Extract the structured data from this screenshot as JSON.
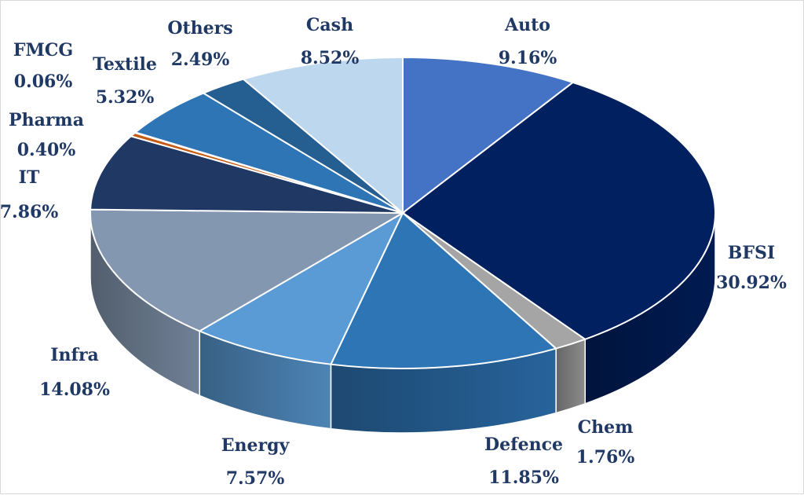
{
  "chart_data": {
    "type": "pie",
    "style": "3d",
    "title": "",
    "slices": [
      {
        "label": "Auto",
        "percent_label": "9.16%",
        "value": 9.16,
        "color": "#4472c4"
      },
      {
        "label": "BFSI",
        "percent_label": "30.92%",
        "value": 30.92,
        "color": "#002060"
      },
      {
        "label": "Chem",
        "percent_label": "1.76%",
        "value": 1.76,
        "color": "#a5a5a5"
      },
      {
        "label": "Defence",
        "percent_label": "11.85%",
        "value": 11.85,
        "color": "#2e75b6"
      },
      {
        "label": "Energy",
        "percent_label": "7.57%",
        "value": 7.57,
        "color": "#5b9bd5"
      },
      {
        "label": "Infra",
        "percent_label": "14.08%",
        "value": 14.08,
        "color": "#8497b0"
      },
      {
        "label": "IT",
        "percent_label": "7.86%",
        "value": 7.86,
        "color": "#203864"
      },
      {
        "label": "Pharma",
        "percent_label": "0.40%",
        "value": 0.4,
        "color": "#c55a11"
      },
      {
        "label": "FMCG",
        "percent_label": "0.06%",
        "value": 0.06,
        "color": "#bdd7ee"
      },
      {
        "label": "Textile",
        "percent_label": "5.32%",
        "value": 5.32,
        "color": "#2e75b6"
      },
      {
        "label": "Others",
        "percent_label": "2.49%",
        "value": 2.49,
        "color": "#255e91"
      },
      {
        "label": "Cash",
        "percent_label": "8.52%",
        "value": 8.52,
        "color": "#bdd7ee"
      }
    ],
    "legend": "none",
    "data_labels": "outside"
  }
}
